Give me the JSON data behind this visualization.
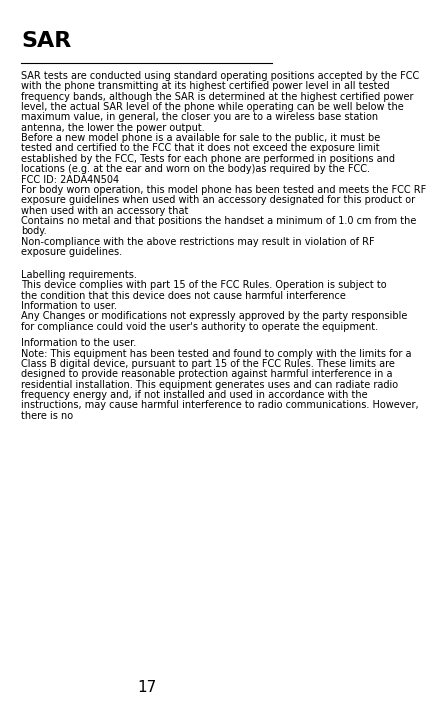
{
  "title": "SAR",
  "page_number": "17",
  "background_color": "#ffffff",
  "text_color": "#000000",
  "title_fontsize": 16,
  "body_fontsize": 7.0,
  "paragraphs": [
    {
      "text": "SAR  tests  are  conducted  using  standard  operating  positions accepted by the FCC with the  phone  transmitting at its highest certified power level in all tested frequency bands, although  the SAR  is  determined  at  the  highest  certified  power  level,  the actual SAR level of the phone while operating can be well below the maximum value, in general, the closer you are to a  wireless base station antenna, the lower the power output.",
      "justify": true
    },
    {
      "text": "Before a new model phone is a available for sale to the public, it must be tested and certified to  the FCC that it does not exceed the exposure limit established by the FCC, Tests for each phone are performed in positions and locations (e.g. at the ear and worn on the body)as  required by the FCC.",
      "justify": false
    },
    {
      "text": "FCC ID: 2ADA4N504",
      "justify": false
    },
    {
      "text": "For body worn operation, this model phone has been tested and meets the FCC RF exposure  guidelines when used with an accessory designated for this product or when used with an accessory that",
      "justify": false
    },
    {
      "text": "Contains no metal and that positions the handset a minimum of 1.0 cm from the body.",
      "justify": false
    },
    {
      "text": "Non-compliance  with  the  above  restrictions  may  result  in violation of RF exposure guidelines.",
      "justify": true
    },
    {
      "text": "",
      "justify": false
    },
    {
      "text": "",
      "justify": false
    },
    {
      "text": "Labelling requirements.",
      "justify": false
    },
    {
      "text": "This device complies with part 15 of the FCC Rules. Operation is subject to the condition that this device does not cause harmful interference",
      "justify": false
    },
    {
      "text": "Information to user.",
      "justify": false
    },
    {
      "text": "Any Changes or modifications not expressly approved by the party responsible for compliance could void the user's authority to operate the equipment.",
      "justify": false
    },
    {
      "text": "",
      "justify": false
    },
    {
      "text": "Information to the user.",
      "justify": false
    },
    {
      "text": "Note: This equipment has been tested and found to comply with the limits for a Class B digital device, pursuant to part 15 of the FCC  Rules.  These  limits  are  designed  to  provide  reasonable protection  against  harmful  interference  in  a  residential installation.  This  equipment  generates  uses  and  can  radiate radio  frequency  energy  and,  if  not  installed  and  used  in accordance  with  the  instructions,  may  cause  harmful interference  to  radio  communications.  However,  there  is  no",
      "justify": true
    }
  ]
}
